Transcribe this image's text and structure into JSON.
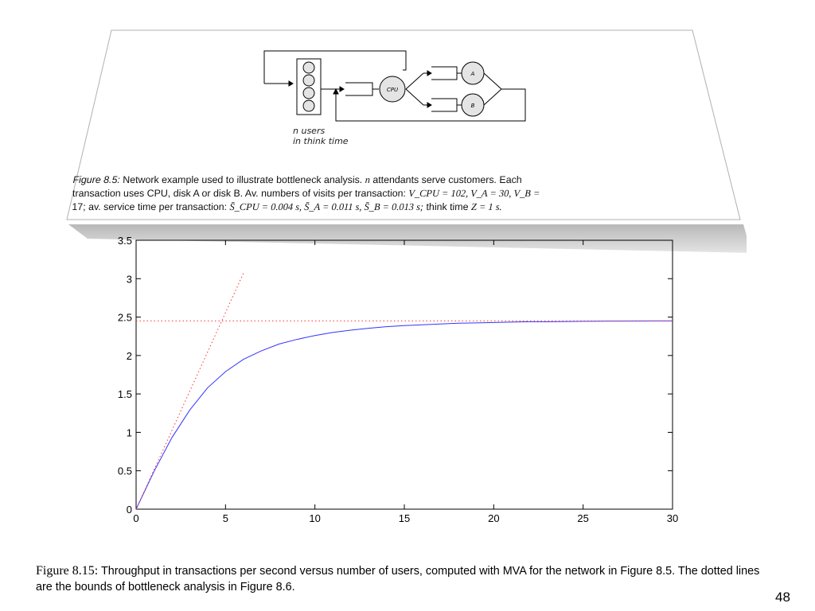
{
  "figure_8_5": {
    "diagram": {
      "cpu_label": "CPU",
      "disk_a_label": "A",
      "disk_b_label": "B",
      "users_line1": "n users",
      "users_line2": "in think time"
    },
    "caption": {
      "line1_fig": "Figure 8.5:",
      "line1_text": " Network example used to illustrate bottleneck analysis. ",
      "line1_n": "n",
      "line1_rest": " attendants serve customers. Each",
      "line2_text": "transaction uses CPU, disk A or disk B. Av. numbers of visits per transaction: ",
      "line2_math": "V_CPU = 102, V_A = 30, V_B =",
      "line3_lead": "17; av. service time per transaction: ",
      "line3_math": "S̄_CPU = 0.004 s,  S̄_A = 0.011 s,  S̄_B = 0.013 s;",
      "line3_rest": " think time ",
      "line3_z": "Z = 1 s."
    }
  },
  "chart_data": {
    "type": "line",
    "title": "",
    "xlabel": "",
    "ylabel": "",
    "xlim": [
      0,
      30
    ],
    "ylim": [
      0,
      3.5
    ],
    "x_ticks": [
      "0",
      "5",
      "10",
      "15",
      "20",
      "25",
      "30"
    ],
    "y_ticks": [
      "0",
      "0.5",
      "1",
      "1.5",
      "2",
      "2.5",
      "3",
      "3.5"
    ],
    "grid": false,
    "series": [
      {
        "style": "solid",
        "color": "#3333ff",
        "x": [
          0,
          1,
          2,
          3,
          4,
          5,
          6,
          7,
          8,
          9,
          10,
          11,
          12,
          13,
          14,
          15,
          16,
          17,
          18,
          19,
          20,
          21,
          22,
          23,
          24,
          25,
          26,
          27,
          28,
          29,
          30
        ],
        "y": [
          0,
          0.49,
          0.93,
          1.29,
          1.58,
          1.79,
          1.95,
          2.06,
          2.15,
          2.21,
          2.26,
          2.3,
          2.33,
          2.355,
          2.375,
          2.39,
          2.4,
          2.41,
          2.42,
          2.425,
          2.43,
          2.435,
          2.44,
          2.44,
          2.443,
          2.445,
          2.447,
          2.448,
          2.449,
          2.45,
          2.45
        ]
      },
      {
        "style": "dotted",
        "color": "#ff3333",
        "x": [
          0,
          6
        ],
        "y": [
          0,
          3.07
        ]
      },
      {
        "style": "dotted",
        "color": "#ff3333",
        "x": [
          0,
          30
        ],
        "y": [
          2.45,
          2.45
        ]
      }
    ]
  },
  "figure_8_15_caption": {
    "fig_num": "Figure 8.15:",
    "text": " Throughput in transactions per second versus number of users, computed with MVA for the network in Figure 8.5. The dotted lines are the bounds of bottleneck analysis in Figure 8.6."
  },
  "page_number": "48"
}
